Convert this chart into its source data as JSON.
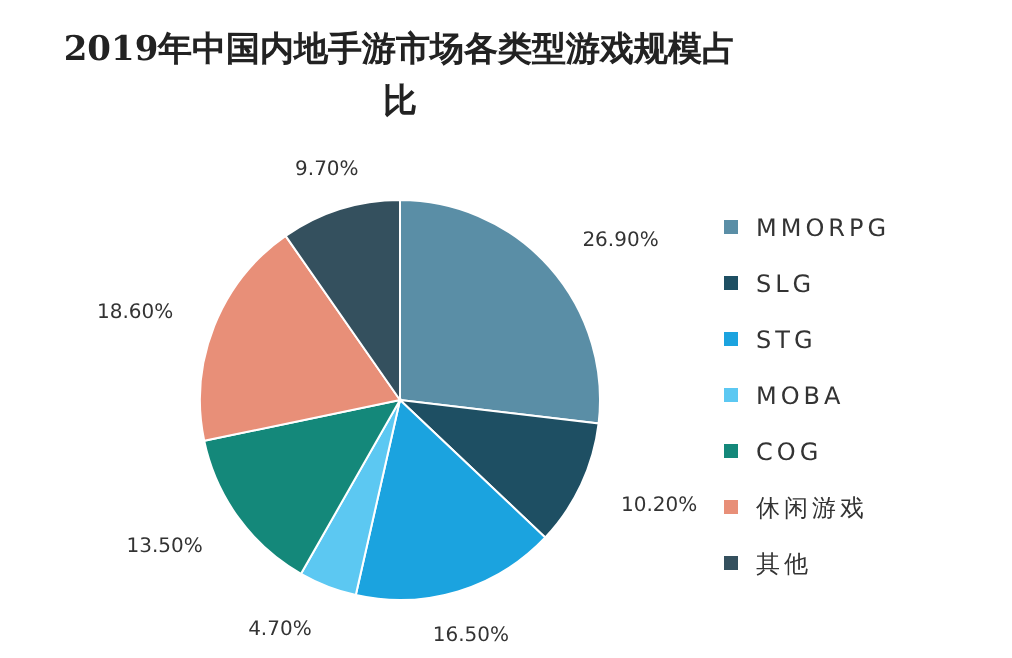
{
  "chart_data": {
    "type": "pie",
    "title": "2019年中国内地手游市场各类型游戏规模占比",
    "categories": [
      "MMORPG",
      "SLG",
      "STG",
      "MOBA",
      "COG",
      "休闲游戏",
      "其他"
    ],
    "values": [
      26.9,
      10.2,
      16.5,
      4.7,
      13.5,
      18.6,
      9.7
    ],
    "value_labels": [
      "26.90%",
      "10.20%",
      "16.50%",
      "4.70%",
      "13.50%",
      "18.60%",
      "9.70%"
    ],
    "colors": [
      "#5a8ea6",
      "#1e4f63",
      "#1ba3df",
      "#5cc8f2",
      "#14887a",
      "#e88f78",
      "#34505e"
    ],
    "legend": "right"
  }
}
